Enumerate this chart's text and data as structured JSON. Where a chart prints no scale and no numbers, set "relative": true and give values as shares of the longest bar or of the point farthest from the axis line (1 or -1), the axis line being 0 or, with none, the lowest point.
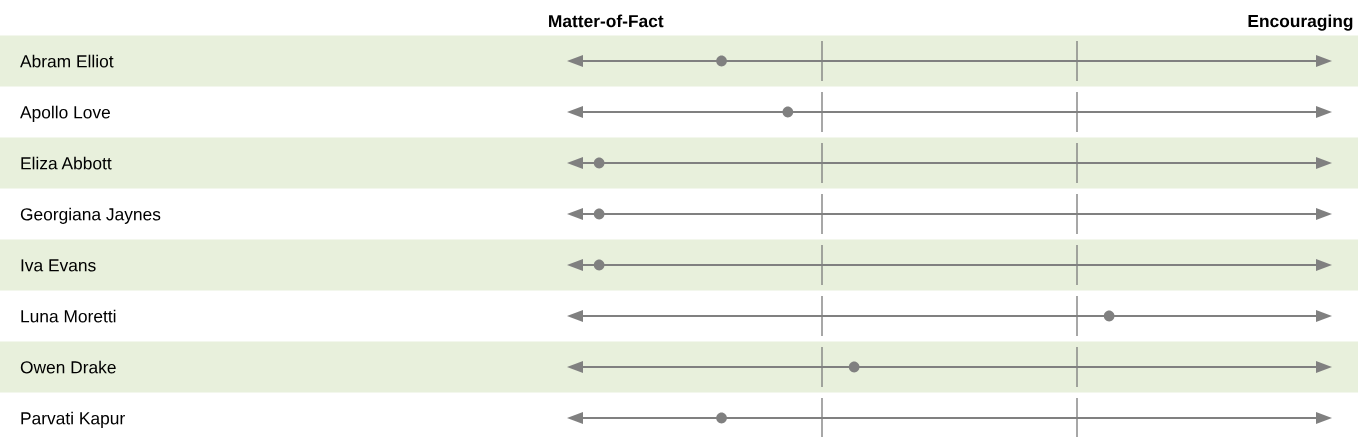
{
  "chart_data": {
    "type": "scatter",
    "orientation": "horizontal",
    "relative": true,
    "categories": [
      "Abram Elliot",
      "Apollo Love",
      "Eliza Abbott",
      "Georgiana Jaynes",
      "Iva Evans",
      "Luna Moretti",
      "Owen Drake",
      "Parvati Kapur"
    ],
    "values": [
      0.24,
      0.37,
      0,
      0,
      0,
      1,
      0.5,
      0.24
    ],
    "color": "#808080",
    "marker": "circle",
    "annotations": [
      "Matter-of-Fact",
      "Encouraging"
    ],
    "grid": "y",
    "legend": false
  }
}
